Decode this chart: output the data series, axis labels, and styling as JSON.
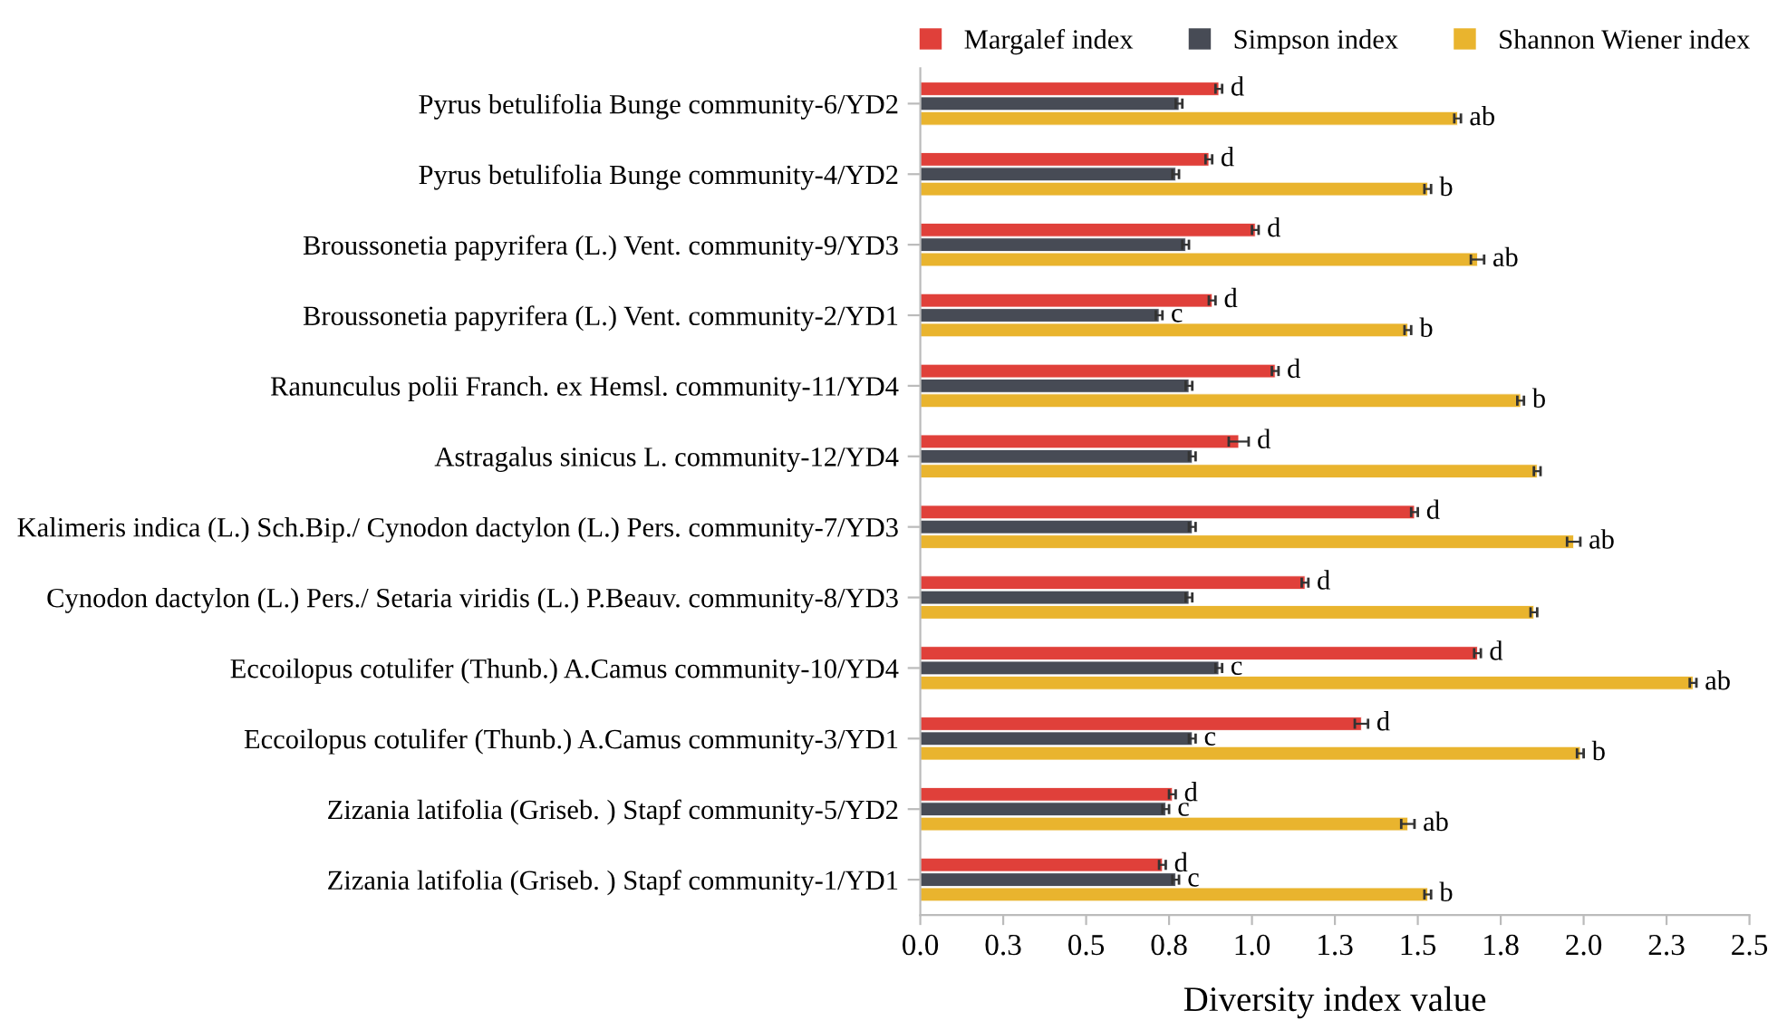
{
  "chart_data": {
    "type": "bar",
    "orientation": "horizontal",
    "xlabel": "Diversity index value",
    "legend": "top",
    "grid": false,
    "categories": [
      "Pyrus betulifolia Bunge community-6/YD2",
      "Pyrus betulifolia Bunge community-4/YD2",
      "Broussonetia papyrifera (L.) Vent. community-9/YD3",
      "Broussonetia papyrifera (L.) Vent. community-2/YD1",
      "Ranunculus polii Franch. ex Hemsl. community-11/YD4",
      "Astragalus sinicus L. community-12/YD4",
      "Kalimeris indica (L.) Sch.Bip./ Cynodon dactylon (L.) Pers. community-7/YD3",
      "Cynodon dactylon (L.) Pers./ Setaria viridis (L.) P.Beauv. community-8/YD3",
      "Eccoilopus cotulifer (Thunb.) A.Camus community-10/YD4",
      "Eccoilopus cotulifer (Thunb.) A.Camus community-3/YD1",
      "Zizania latifolia (Griseb. ) Stapf community-5/YD2",
      "Zizania latifolia (Griseb. ) Stapf community-1/YD1"
    ],
    "xlim": [
      0,
      2.5
    ],
    "xticks": [
      {
        "value": 0,
        "label": "0.0"
      },
      {
        "value": 0.25,
        "label": "0.3"
      },
      {
        "value": 0.5,
        "label": "0.5"
      },
      {
        "value": 0.75,
        "label": "0.8"
      },
      {
        "value": 1,
        "label": "1.0"
      },
      {
        "value": 1.25,
        "label": "1.3"
      },
      {
        "value": 1.5,
        "label": "1.5"
      },
      {
        "value": 1.75,
        "label": "1.8"
      },
      {
        "value": 2,
        "label": "2.0"
      },
      {
        "value": 2.25,
        "label": "2.3"
      },
      {
        "value": 2.5,
        "label": "2.5"
      }
    ],
    "series": [
      {
        "name": "Margalef index",
        "color": "#e0403a",
        "values": [
          0.9,
          0.87,
          1.01,
          0.88,
          1.07,
          0.96,
          1.49,
          1.16,
          1.68,
          1.33,
          0.76,
          0.73
        ],
        "errors": [
          0.01,
          0.01,
          0.01,
          0.01,
          0.01,
          0.03,
          0.01,
          0.01,
          0.01,
          0.02,
          0.01,
          0.01
        ],
        "value_labels": [
          "d",
          "d",
          "d",
          "d",
          "d",
          "d",
          "d",
          "d",
          "d",
          "d",
          "d",
          "d"
        ]
      },
      {
        "name": "Simpson index",
        "color": "#474b55",
        "values": [
          0.78,
          0.77,
          0.8,
          0.72,
          0.81,
          0.82,
          0.82,
          0.81,
          0.9,
          0.82,
          0.74,
          0.77
        ],
        "errors": [
          0.01,
          0.01,
          0.01,
          0.01,
          0.01,
          0.01,
          0.01,
          0.01,
          0.01,
          0.01,
          0.01,
          0.01
        ],
        "value_labels": [
          null,
          null,
          null,
          "c",
          null,
          null,
          null,
          null,
          "c",
          "c",
          "c",
          "c"
        ]
      },
      {
        "name": "Shannon Wiener index",
        "color": "#e9b42e",
        "values": [
          1.62,
          1.53,
          1.68,
          1.47,
          1.81,
          1.86,
          1.97,
          1.85,
          2.33,
          1.99,
          1.47,
          1.53
        ],
        "errors": [
          0.01,
          0.01,
          0.02,
          0.01,
          0.01,
          0.01,
          0.02,
          0.01,
          0.01,
          0.01,
          0.02,
          0.01
        ],
        "value_labels": [
          "ab",
          "b",
          "ab",
          "b",
          "b",
          null,
          "ab",
          null,
          "ab",
          "b",
          "ab",
          "b"
        ]
      }
    ]
  }
}
